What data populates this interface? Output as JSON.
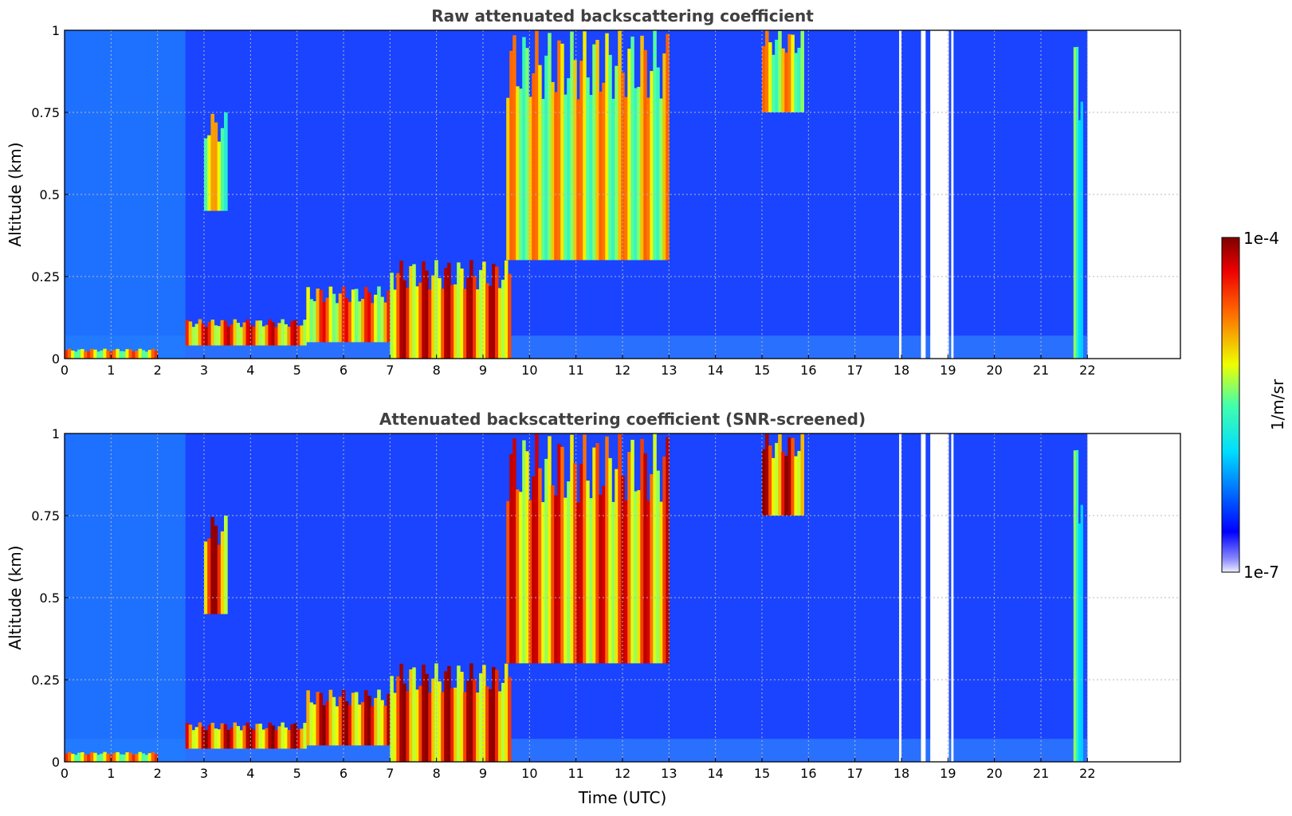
{
  "chart_data": [
    {
      "type": "heatmap",
      "title": "Raw attenuated backscattering coefficient",
      "xlabel": "",
      "ylabel": "Altitude (km)",
      "xlim": [
        0,
        24
      ],
      "ylim": [
        0,
        1
      ],
      "x_ticks": [
        "0",
        "1",
        "2",
        "3",
        "4",
        "5",
        "6",
        "7",
        "8",
        "9",
        "10",
        "11",
        "12",
        "13",
        "14",
        "15",
        "16",
        "17",
        "18",
        "19",
        "20",
        "21",
        "22"
      ],
      "y_ticks": [
        "0",
        "0.25",
        "0.5",
        "0.75",
        "1"
      ],
      "grid": true,
      "data_extent_x": [
        0,
        22
      ],
      "gaps_x": [
        [
          17.95,
          18.0
        ],
        [
          18.42,
          18.52
        ],
        [
          18.62,
          19.02
        ],
        [
          19.07,
          19.12
        ]
      ],
      "layers": [
        {
          "name": "near-surface layer",
          "x": [
            0.0,
            2.0
          ],
          "y": [
            0.0,
            0.03
          ],
          "level": 0.85
        },
        {
          "name": "boundary layer aerosol",
          "x": [
            2.6,
            5.2
          ],
          "y": [
            0.04,
            0.12
          ],
          "level": 0.95
        },
        {
          "name": "boundary layer aerosol",
          "x": [
            5.2,
            7.0
          ],
          "y": [
            0.05,
            0.22
          ],
          "level": 0.9
        },
        {
          "name": "boundary layer aerosol",
          "x": [
            7.0,
            9.6
          ],
          "y": [
            0.0,
            0.3
          ],
          "level": 0.98
        },
        {
          "name": "elevated layer",
          "x": [
            3.0,
            3.5
          ],
          "y": [
            0.45,
            0.75
          ],
          "level": 0.75
        },
        {
          "name": "cloud streaks",
          "x": [
            9.5,
            13.0
          ],
          "y": [
            0.3,
            1.0
          ],
          "level": 0.8
        },
        {
          "name": "upper layer",
          "x": [
            15.0,
            15.9
          ],
          "y": [
            0.75,
            1.0
          ],
          "level": 0.8
        },
        {
          "name": "vertical stripe",
          "x": [
            21.7,
            21.9
          ],
          "y": [
            0.0,
            1.0
          ],
          "level": 0.6
        }
      ]
    },
    {
      "type": "heatmap",
      "title": "Attenuated backscattering coefficient (SNR-screened)",
      "xlabel": "Time (UTC)",
      "ylabel": "Altitude (km)",
      "xlim": [
        0,
        24
      ],
      "ylim": [
        0,
        1
      ],
      "x_ticks": [
        "0",
        "1",
        "2",
        "3",
        "4",
        "5",
        "6",
        "7",
        "8",
        "9",
        "10",
        "11",
        "12",
        "13",
        "14",
        "15",
        "16",
        "17",
        "18",
        "19",
        "20",
        "21",
        "22"
      ],
      "y_ticks": [
        "0",
        "0.25",
        "0.5",
        "0.75",
        "1"
      ],
      "grid": true,
      "data_extent_x": [
        0,
        22
      ],
      "gaps_x": [
        [
          17.95,
          18.0
        ],
        [
          18.42,
          18.52
        ],
        [
          18.62,
          19.02
        ],
        [
          19.07,
          19.12
        ]
      ],
      "layers": [
        {
          "name": "near-surface layer",
          "x": [
            0.0,
            2.0
          ],
          "y": [
            0.0,
            0.03
          ],
          "level": 0.85
        },
        {
          "name": "boundary layer aerosol",
          "x": [
            2.6,
            5.2
          ],
          "y": [
            0.04,
            0.12
          ],
          "level": 1.0
        },
        {
          "name": "boundary layer aerosol",
          "x": [
            5.2,
            7.0
          ],
          "y": [
            0.05,
            0.22
          ],
          "level": 1.0
        },
        {
          "name": "boundary layer aerosol",
          "x": [
            7.0,
            9.6
          ],
          "y": [
            0.0,
            0.3
          ],
          "level": 1.0
        },
        {
          "name": "elevated layer",
          "x": [
            3.0,
            3.5
          ],
          "y": [
            0.45,
            0.75
          ],
          "level": 1.0
        },
        {
          "name": "cloud streaks",
          "x": [
            9.5,
            13.0
          ],
          "y": [
            0.3,
            1.0
          ],
          "level": 0.95
        },
        {
          "name": "upper layer",
          "x": [
            15.0,
            15.9
          ],
          "y": [
            0.75,
            1.0
          ],
          "level": 1.0
        },
        {
          "name": "vertical stripe",
          "x": [
            21.7,
            21.9
          ],
          "y": [
            0.0,
            1.0
          ],
          "level": 0.6
        }
      ]
    }
  ],
  "colorbar": {
    "max_label": "1e-4",
    "min_label": "1e-7",
    "label": "1/m/sr",
    "colormap": "jet",
    "scale": "log"
  }
}
